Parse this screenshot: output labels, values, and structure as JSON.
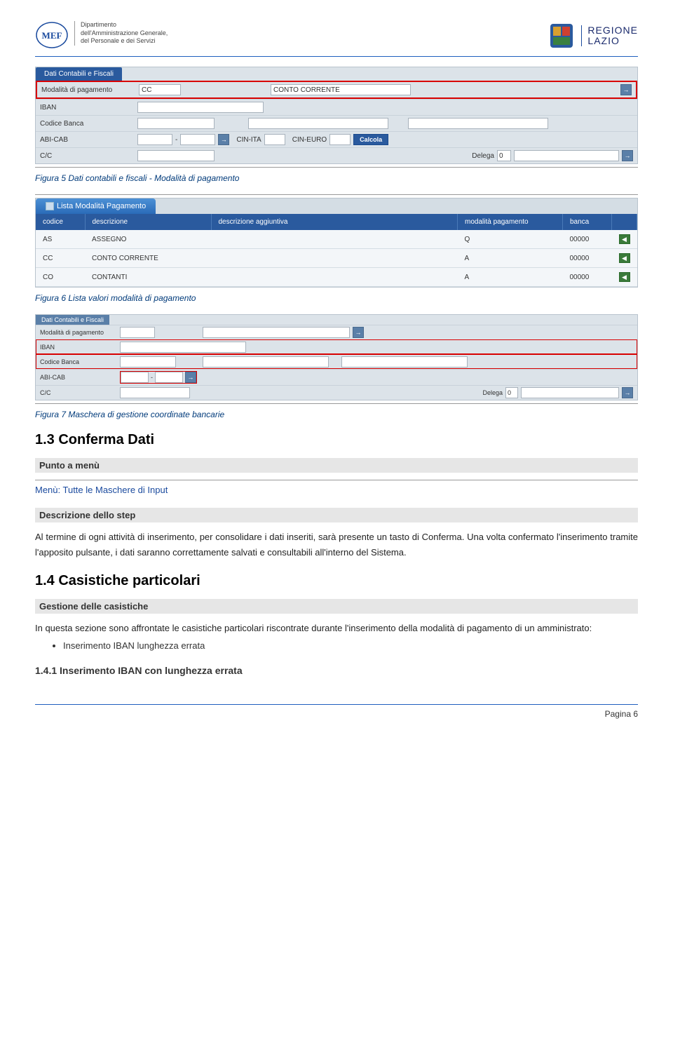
{
  "header": {
    "mef_lines": [
      "Dipartimento",
      "dell'Amministrazione Generale,",
      "del Personale e dei Servizi"
    ],
    "mef_acronym": "MEF",
    "regione_line1": "REGIONE",
    "regione_line2": "LAZIO"
  },
  "fig5": {
    "tab": "Dati Contabili e Fiscali",
    "row1": {
      "label": "Modalità di pagamento",
      "val1": "CC",
      "val2": "CONTO CORRENTE"
    },
    "row2": {
      "label": "IBAN"
    },
    "row3": {
      "label": "Codice Banca"
    },
    "row4": {
      "label": "ABI-CAB",
      "dash": "-",
      "cinita": "CIN-ITA",
      "cineuro": "CIN-EURO",
      "calcola": "Calcola"
    },
    "row5": {
      "label": "C/C",
      "delega_label": "Delega",
      "delega_val": "0"
    }
  },
  "caption5": "Figura 5 Dati contabili e fiscali - Modalità di pagamento",
  "fig6": {
    "tab": "Lista Modalità Pagamento",
    "headers": [
      "codice",
      "descrizione",
      "descrizione aggiuntiva",
      "modalità pagamento",
      "banca",
      ""
    ],
    "rows": [
      [
        "AS",
        "ASSEGNO",
        "",
        "Q",
        "00000"
      ],
      [
        "CC",
        "CONTO CORRENTE",
        "",
        "A",
        "00000"
      ],
      [
        "CO",
        "CONTANTI",
        "",
        "A",
        "00000"
      ]
    ]
  },
  "caption6": "Figura 6 Lista valori modalità di pagamento",
  "fig7": {
    "tab": "Dati Contabili e Fiscali",
    "row1": {
      "label": "Modalità di pagamento"
    },
    "row2": {
      "label": "IBAN"
    },
    "row3": {
      "label": "Codice Banca"
    },
    "row4": {
      "label": "ABI-CAB",
      "dash": "-"
    },
    "row5": {
      "label": "C/C",
      "delega_label": "Delega",
      "delega_val": "0"
    }
  },
  "caption7": "Figura 7 Maschera di gestione  coordinate bancarie",
  "section13": {
    "title": "1.3 Conferma Dati",
    "punto": "Punto a menù",
    "menu": "Menù: Tutte le Maschere di Input",
    "descr_label": "Descrizione dello step",
    "para": "Al termine di ogni attività di inserimento, per consolidare i dati inseriti, sarà presente un tasto di Conferma. Una volta confermato l'inserimento tramite l'apposito pulsante, i dati saranno correttamente salvati e consultabili all'interno del Sistema."
  },
  "section14": {
    "title": "1.4 Casistiche particolari",
    "gest_label": "Gestione delle casistiche",
    "para": "In questa sezione sono affrontate le casistiche particolari riscontrate durante l'inserimento della modalità di pagamento di un amministrato:",
    "bullet1": "Inserimento IBAN lunghezza errata"
  },
  "section141": {
    "title": "1.4.1   Inserimento IBAN con lunghezza errata"
  },
  "footer": {
    "pagenum": "Pagina 6"
  },
  "colors": {
    "blue_primary": "#2a5a9e",
    "blue_link": "#1a4a9e",
    "red_highlight": "#d80000",
    "gray_bg": "#e6e6e6",
    "form_bg": "#dce3e9"
  }
}
